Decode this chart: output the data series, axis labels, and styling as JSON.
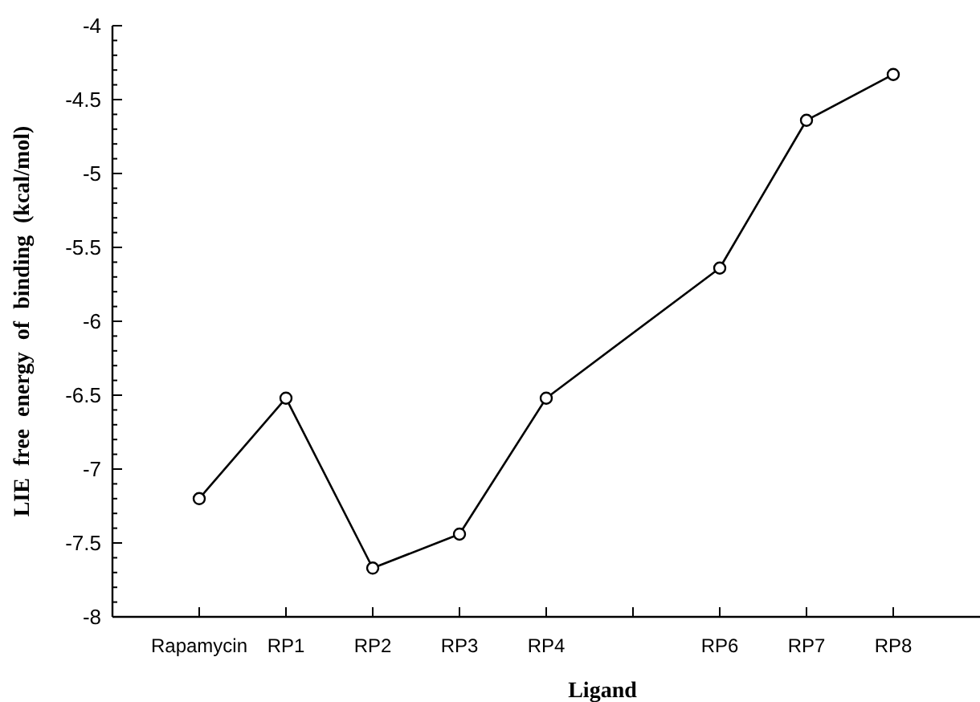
{
  "chart_data": {
    "type": "line",
    "xlabel": "Ligand",
    "ylabel": "LIE free energy of binding (kcal/mol)",
    "categories": [
      "Rapamycin",
      "RP1",
      "RP2",
      "RP3",
      "RP4",
      null,
      "RP6",
      "RP7",
      "RP8"
    ],
    "series": [
      {
        "color": "#000000",
        "values": [
          -7.2,
          -6.52,
          -7.67,
          -7.44,
          -6.52,
          null,
          -5.64,
          -4.64,
          -4.33
        ]
      }
    ],
    "ylim": [
      -8,
      -4
    ],
    "yticks": [
      -8,
      {
        "value": -7.9,
        "label": null
      },
      {
        "value": -7.8,
        "label": null
      },
      {
        "value": -7.7,
        "label": null
      },
      {
        "value": -7.6,
        "label": null
      },
      -7.5,
      {
        "value": -7.4,
        "label": null
      },
      {
        "value": -7.3,
        "label": null
      },
      {
        "value": -7.2,
        "label": null
      },
      {
        "value": -7.1,
        "label": null
      },
      -7,
      {
        "value": -6.9,
        "label": null
      },
      {
        "value": -6.8,
        "label": null
      },
      {
        "value": -6.7,
        "label": null
      },
      {
        "value": -6.6,
        "label": null
      },
      -6.5,
      {
        "value": -6.4,
        "label": null
      },
      {
        "value": -6.3,
        "label": null
      },
      {
        "value": -6.2,
        "label": null
      },
      {
        "value": -6.1,
        "label": null
      },
      -6,
      {
        "value": -5.9,
        "label": null
      },
      {
        "value": -5.8,
        "label": null
      },
      {
        "value": -5.7,
        "label": null
      },
      {
        "value": -5.6,
        "label": null
      },
      -5.5,
      {
        "value": -5.4,
        "label": null
      },
      {
        "value": -5.3,
        "label": null
      },
      {
        "value": -5.2,
        "label": null
      },
      {
        "value": -5.1,
        "label": null
      },
      -5,
      {
        "value": -4.9,
        "label": null
      },
      {
        "value": -4.8,
        "label": null
      },
      {
        "value": -4.7,
        "label": null
      },
      {
        "value": -4.6,
        "label": null
      },
      -4.5,
      {
        "value": -4.4,
        "label": null
      },
      {
        "value": -4.3,
        "label": null
      },
      {
        "value": -4.2,
        "label": null
      },
      {
        "value": -4.1,
        "label": null
      },
      -4
    ],
    "marker": "circle",
    "line_style": "solid"
  }
}
